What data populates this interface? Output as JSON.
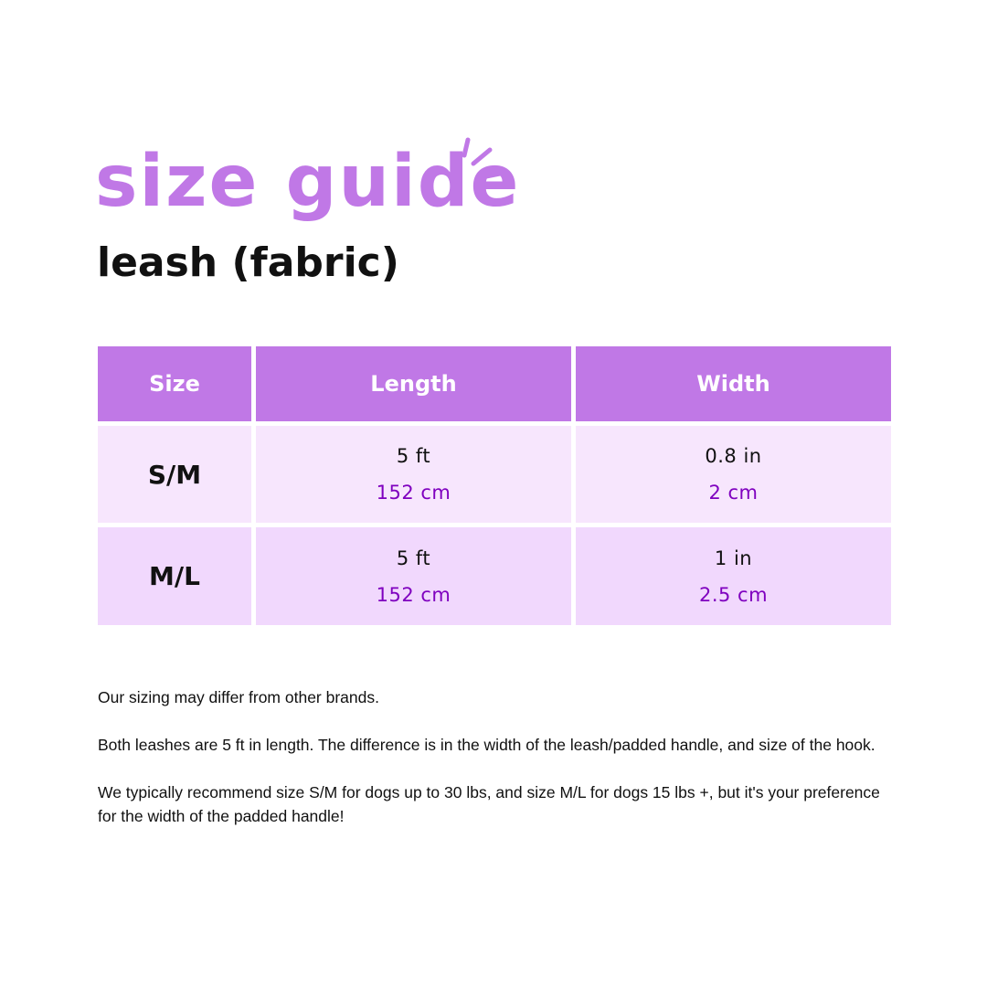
{
  "header": {
    "title": "size guide",
    "subtitle": "leash (fabric)"
  },
  "colors": {
    "accent": "#c078e6",
    "row_light": "#f7e6fd",
    "row_mid": "#f1d8fd",
    "metric_text": "#7f00bf"
  },
  "table": {
    "columns": [
      "Size",
      "Length",
      "Width"
    ],
    "rows": [
      {
        "size": "S/M",
        "length_imperial": "5 ft",
        "length_metric": "152 cm",
        "width_imperial": "0.8 in",
        "width_metric": "2 cm"
      },
      {
        "size": "M/L",
        "length_imperial": "5 ft",
        "length_metric": "152 cm",
        "width_imperial": "1 in",
        "width_metric": "2.5 cm"
      }
    ]
  },
  "notes": [
    "Our sizing may differ from other brands.",
    "Both leashes are 5 ft in length. The difference is in the width of the leash/padded handle, and size of the hook.",
    "We typically recommend size S/M for dogs up to 30 lbs, and size M/L for dogs 15 lbs +, but it's your preference for the width of the padded handle!"
  ]
}
